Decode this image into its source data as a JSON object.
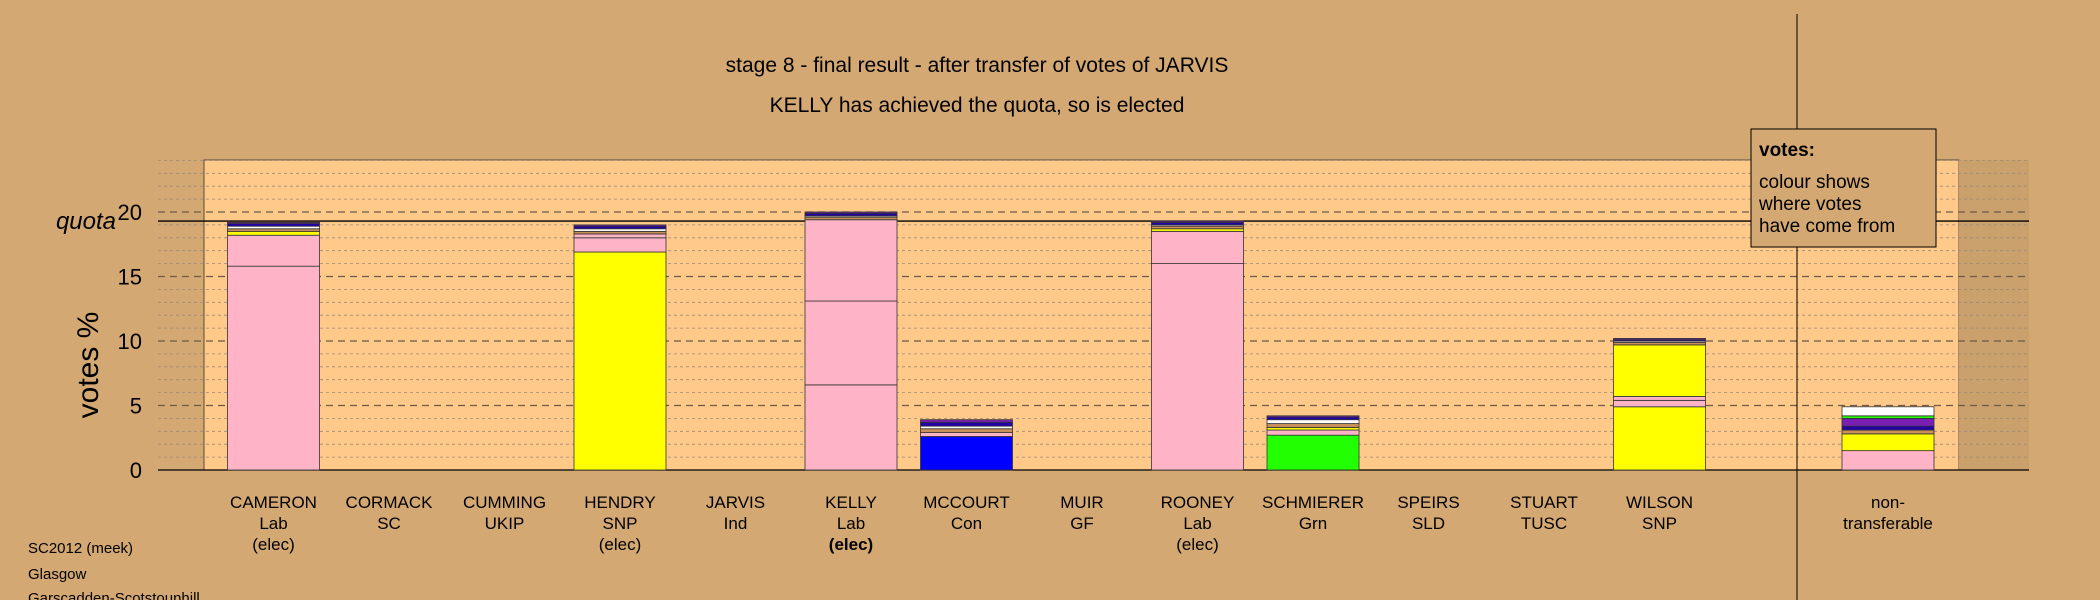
{
  "chart_data": {
    "type": "bar",
    "stacked": true,
    "title": "stage 8 - final result - after transfer of votes of JARVIS",
    "subtitle": "KELLY has achieved the quota, so is elected",
    "ylabel": "votes %",
    "xlabel": "",
    "ylim": [
      0,
      24
    ],
    "yticks": [
      0,
      5,
      10,
      15,
      20
    ],
    "quota": 19.3,
    "quota_label": "quota",
    "grid": true,
    "legend": {
      "placement": "top-right",
      "title": "votes:",
      "lines": [
        "colour shows",
        "where votes",
        "have come from"
      ]
    },
    "categories": [
      {
        "name": "CAMERON",
        "party": "Lab",
        "status": "(elec)",
        "status_bold": false,
        "segments": [
          {
            "value": 15.8,
            "color": "#ffb3c6"
          },
          {
            "value": 2.4,
            "color": "#ffb3c6"
          },
          {
            "value": 0.3,
            "color": "#ffff00"
          },
          {
            "value": 0.2,
            "color": "#c89058"
          },
          {
            "value": 0.2,
            "color": "#ffffff"
          },
          {
            "value": 0.2,
            "color": "#2200aa"
          },
          {
            "value": 0.1,
            "color": "#7a1fb3"
          }
        ]
      },
      {
        "name": "CORMACK",
        "party": "SC",
        "status": "",
        "status_bold": false,
        "segments": []
      },
      {
        "name": "CUMMING",
        "party": "UKIP",
        "status": "",
        "status_bold": false,
        "segments": []
      },
      {
        "name": "HENDRY",
        "party": "SNP",
        "status": "(elec)",
        "status_bold": false,
        "segments": [
          {
            "value": 16.9,
            "color": "#ffff00"
          },
          {
            "value": 1.1,
            "color": "#ffb3c6"
          },
          {
            "value": 0.3,
            "color": "#ffb3c6"
          },
          {
            "value": 0.2,
            "color": "#c89058"
          },
          {
            "value": 0.2,
            "color": "#ffffff"
          },
          {
            "value": 0.2,
            "color": "#2200aa"
          },
          {
            "value": 0.1,
            "color": "#7a1fb3"
          }
        ]
      },
      {
        "name": "JARVIS",
        "party": "Ind",
        "status": "",
        "status_bold": false,
        "segments": []
      },
      {
        "name": "KELLY",
        "party": "Lab",
        "status": "(elec)",
        "status_bold": true,
        "segments": [
          {
            "value": 6.6,
            "color": "#ffb3c6"
          },
          {
            "value": 6.5,
            "color": "#ffb3c6"
          },
          {
            "value": 6.3,
            "color": "#ffb3c6"
          },
          {
            "value": 0.2,
            "color": "#c89058"
          },
          {
            "value": 0.1,
            "color": "#ffffff"
          },
          {
            "value": 0.2,
            "color": "#2200aa"
          },
          {
            "value": 0.1,
            "color": "#7a1fb3"
          }
        ]
      },
      {
        "name": "MCCOURT",
        "party": "Con",
        "status": "",
        "status_bold": false,
        "segments": [
          {
            "value": 2.6,
            "color": "#0000ff"
          },
          {
            "value": 0.3,
            "color": "#ffb3c6"
          },
          {
            "value": 0.3,
            "color": "#c89058"
          },
          {
            "value": 0.2,
            "color": "#ffffff"
          },
          {
            "value": 0.3,
            "color": "#2200aa"
          },
          {
            "value": 0.2,
            "color": "#7a1fb3"
          }
        ]
      },
      {
        "name": "MUIR",
        "party": "GF",
        "status": "",
        "status_bold": false,
        "segments": []
      },
      {
        "name": "ROONEY",
        "party": "Lab",
        "status": "(elec)",
        "status_bold": false,
        "segments": [
          {
            "value": 16.0,
            "color": "#ffb3c6"
          },
          {
            "value": 2.5,
            "color": "#ffb3c6"
          },
          {
            "value": 0.2,
            "color": "#ffff00"
          },
          {
            "value": 0.2,
            "color": "#c89058"
          },
          {
            "value": 0.1,
            "color": "#ffffff"
          },
          {
            "value": 0.2,
            "color": "#2200aa"
          },
          {
            "value": 0.1,
            "color": "#7a1fb3"
          }
        ]
      },
      {
        "name": "SCHMIERER",
        "party": "Grn",
        "status": "",
        "status_bold": false,
        "segments": [
          {
            "value": 2.7,
            "color": "#22ff00"
          },
          {
            "value": 0.4,
            "color": "#ffb3c6"
          },
          {
            "value": 0.2,
            "color": "#ffff00"
          },
          {
            "value": 0.3,
            "color": "#c89058"
          },
          {
            "value": 0.3,
            "color": "#ffffff"
          },
          {
            "value": 0.2,
            "color": "#2200aa"
          },
          {
            "value": 0.1,
            "color": "#7a1fb3"
          }
        ]
      },
      {
        "name": "SPEIRS",
        "party": "SLD",
        "status": "",
        "status_bold": false,
        "segments": []
      },
      {
        "name": "STUART",
        "party": "TUSC",
        "status": "",
        "status_bold": false,
        "segments": []
      },
      {
        "name": "WILSON",
        "party": "SNP",
        "status": "",
        "status_bold": false,
        "segments": [
          {
            "value": 4.9,
            "color": "#ffff00"
          },
          {
            "value": 0.5,
            "color": "#ffb3c6"
          },
          {
            "value": 0.3,
            "color": "#ffb3c6"
          },
          {
            "value": 4.0,
            "color": "#ffff00"
          },
          {
            "value": 0.2,
            "color": "#c89058"
          },
          {
            "value": 0.1,
            "color": "#ffffff"
          },
          {
            "value": 0.1,
            "color": "#2200aa"
          },
          {
            "value": 0.1,
            "color": "#7a1fb3"
          }
        ]
      }
    ],
    "nontransferable": {
      "label_lines": [
        "non-",
        "transferable"
      ],
      "segments": [
        {
          "value": 1.5,
          "color": "#ffb3c6"
        },
        {
          "value": 1.3,
          "color": "#ffff00"
        },
        {
          "value": 0.3,
          "color": "#c89058"
        },
        {
          "value": 0.3,
          "color": "#2200aa"
        },
        {
          "value": 0.6,
          "color": "#7a1fb3"
        },
        {
          "value": 0.2,
          "color": "#22ff00"
        },
        {
          "value": 0.7,
          "color": "#ffffff"
        }
      ]
    }
  },
  "footer": {
    "lines": [
      "SC2012 (meek)",
      "Glasgow",
      "Garscadden-Scotstounhill"
    ]
  },
  "colors": {
    "background": "#d4a872",
    "plot_background": "#ffc98a",
    "right_strip": "#caa06c"
  }
}
